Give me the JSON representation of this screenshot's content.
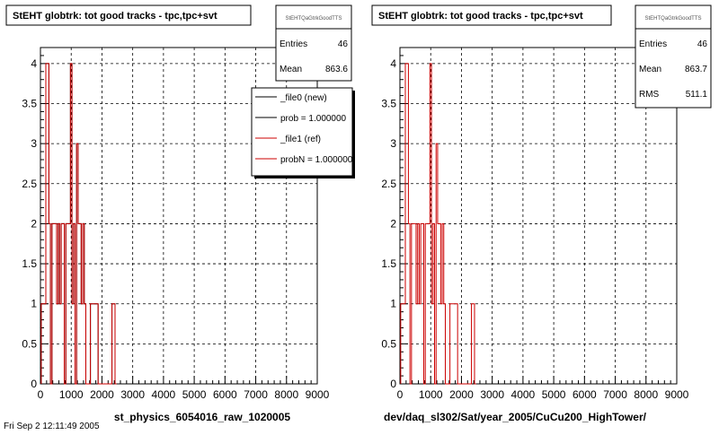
{
  "chart_data": [
    {
      "type": "bar",
      "title": "StEHT globtrk: tot good tracks - tpc,tpc+svt",
      "xlabel": "st_physics_6054016_raw_1020005",
      "xlim": [
        0,
        9000
      ],
      "ylim": [
        0,
        4.2
      ],
      "xticks": [
        "0",
        "1000",
        "2000",
        "3000",
        "4000",
        "5000",
        "6000",
        "7000",
        "8000",
        "9000"
      ],
      "yticks": [
        "0",
        "0.5",
        "1",
        "1.5",
        "2",
        "2.5",
        "3",
        "3.5",
        "4"
      ],
      "grid": true,
      "stats": {
        "name": "StEHTQaGtrkGoodTTS",
        "entries_label": "Entries",
        "entries": "46",
        "mean_label": "Mean",
        "mean": "863.6"
      },
      "legend": {
        "placement": "top-right",
        "entries": [
          "_file0 (new)",
          "prob = 1.000000",
          "_file1 (ref)",
          "probN = 1.000000"
        ]
      },
      "footer": "Fri Sep 2 12:11:49 2005",
      "series": [
        {
          "name": "_file0 (new)",
          "color": "#000000",
          "x": [
            50,
            100,
            150,
            200,
            250,
            300,
            350,
            400,
            450,
            500,
            550,
            600,
            650,
            700,
            750,
            800,
            850,
            900,
            950,
            1000,
            1050,
            1100,
            1150,
            1200,
            1250,
            1300,
            1350,
            1400,
            1450,
            1500,
            1550,
            1600,
            1650,
            1700,
            1750,
            1800,
            1850,
            1900,
            1950,
            2000,
            2050,
            2100,
            2150,
            2200,
            2250,
            2300,
            2350,
            2400,
            2450
          ],
          "values": [
            1,
            1,
            1,
            4,
            4,
            2,
            0,
            2,
            2,
            2,
            1,
            2,
            1,
            2,
            2,
            0,
            2,
            2,
            2,
            4,
            1,
            2,
            0,
            3,
            2,
            2,
            1,
            2,
            1,
            0,
            0,
            0,
            1,
            1,
            1,
            1,
            1,
            0,
            0,
            0,
            0,
            0,
            0,
            0,
            0,
            0,
            1,
            1,
            0
          ]
        },
        {
          "name": "_file1 (ref)",
          "color": "#cc0000",
          "x": [
            50,
            100,
            150,
            200,
            250,
            300,
            350,
            400,
            450,
            500,
            550,
            600,
            650,
            700,
            750,
            800,
            850,
            900,
            950,
            1000,
            1050,
            1100,
            1150,
            1200,
            1250,
            1300,
            1350,
            1400,
            1450,
            1500,
            1550,
            1600,
            1650,
            1700,
            1750,
            1800,
            1850,
            1900,
            1950,
            2000,
            2050,
            2100,
            2150,
            2200,
            2250,
            2300,
            2350,
            2400,
            2450
          ],
          "values": [
            1,
            1,
            1,
            4,
            4,
            2,
            0,
            2,
            2,
            2,
            1,
            2,
            1,
            2,
            2,
            0,
            2,
            2,
            2,
            4,
            1,
            2,
            0,
            3,
            2,
            2,
            1,
            2,
            1,
            0,
            0,
            0,
            1,
            1,
            1,
            1,
            1,
            0,
            0,
            0,
            0,
            0,
            0,
            0,
            0,
            0,
            1,
            1,
            0
          ]
        }
      ]
    },
    {
      "type": "bar",
      "title": "StEHT globtrk: tot good tracks - tpc,tpc+svt",
      "xlabel": "dev/daq_sl302/Sat/year_2005/CuCu200_HighTower/",
      "xlim": [
        0,
        9000
      ],
      "ylim": [
        0,
        4.2
      ],
      "xticks": [
        "0",
        "1000",
        "2000",
        "3000",
        "4000",
        "5000",
        "6000",
        "7000",
        "8000",
        "9000"
      ],
      "yticks": [
        "0",
        "0.5",
        "1",
        "1.5",
        "2",
        "2.5",
        "3",
        "3.5",
        "4"
      ],
      "grid": true,
      "stats": {
        "name": "StEHTQaGtrkGoodTTS",
        "entries_label": "Entries",
        "entries": "46",
        "mean_label": "Mean",
        "mean": "863.7",
        "rms_label": "RMS",
        "rms": "511.1"
      },
      "series": [
        {
          "color": "#cc0000",
          "x": [
            50,
            100,
            150,
            200,
            250,
            300,
            350,
            400,
            450,
            500,
            550,
            600,
            650,
            700,
            750,
            800,
            850,
            900,
            950,
            1000,
            1050,
            1100,
            1150,
            1200,
            1250,
            1300,
            1350,
            1400,
            1450,
            1500,
            1550,
            1600,
            1650,
            1700,
            1750,
            1800,
            1850,
            1900,
            1950,
            2000,
            2050,
            2100,
            2150,
            2200,
            2250,
            2300,
            2350,
            2400,
            2450
          ],
          "values": [
            1,
            1,
            1,
            4,
            4,
            2,
            0,
            2,
            2,
            2,
            1,
            2,
            1,
            2,
            2,
            0,
            2,
            2,
            2,
            4,
            1,
            2,
            0,
            3,
            2,
            2,
            1,
            2,
            1,
            0,
            0,
            0,
            1,
            1,
            1,
            1,
            1,
            0,
            0,
            0,
            0,
            0,
            0,
            0,
            0,
            0,
            1,
            1,
            0
          ]
        }
      ]
    }
  ]
}
